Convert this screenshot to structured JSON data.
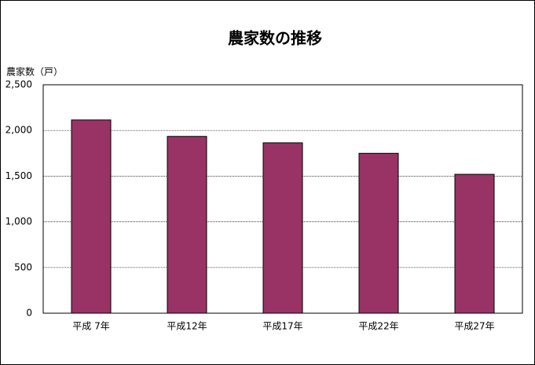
{
  "chart_data": {
    "type": "bar",
    "title": "農家数の推移",
    "y_label": "農家数（戸）",
    "categories": [
      "平成 7年",
      "平成12年",
      "平成17年",
      "平成22年",
      "平成27年"
    ],
    "values": [
      2115,
      1935,
      1865,
      1750,
      1520
    ],
    "color": "#993366",
    "ylim": [
      0,
      2500
    ],
    "yticks": [
      0,
      500,
      {
        "value": 1000,
        "label": "1,000"
      },
      {
        "value": 1500,
        "label": "1,500"
      },
      {
        "value": 2000,
        "label": "2,000"
      },
      {
        "value": 2500,
        "label": "2,500"
      }
    ],
    "grid": true
  }
}
